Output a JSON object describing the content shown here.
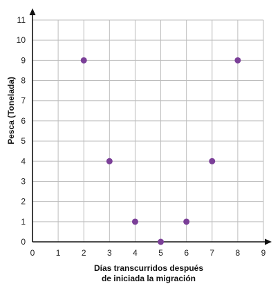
{
  "chart_data": {
    "type": "scatter",
    "xlabel_lines": [
      "Días transcurridos después",
      "de iniciada la migración"
    ],
    "ylabel": "Pesca (Tonelada)",
    "xlim": [
      0,
      9
    ],
    "ylim": [
      0,
      11
    ],
    "x_ticks": [
      0,
      1,
      2,
      3,
      4,
      5,
      6,
      7,
      8,
      9
    ],
    "y_ticks": [
      0,
      1,
      2,
      3,
      4,
      5,
      6,
      7,
      8,
      9,
      10,
      11
    ],
    "grid": true,
    "points": [
      {
        "x": 2,
        "y": 9
      },
      {
        "x": 3,
        "y": 4
      },
      {
        "x": 4,
        "y": 1
      },
      {
        "x": 5,
        "y": 0
      },
      {
        "x": 6,
        "y": 1
      },
      {
        "x": 7,
        "y": 4
      },
      {
        "x": 8,
        "y": 9
      }
    ],
    "colors": {
      "point": "#7b3f98",
      "grid": "#bdbdbd",
      "axis": "#111111"
    }
  }
}
